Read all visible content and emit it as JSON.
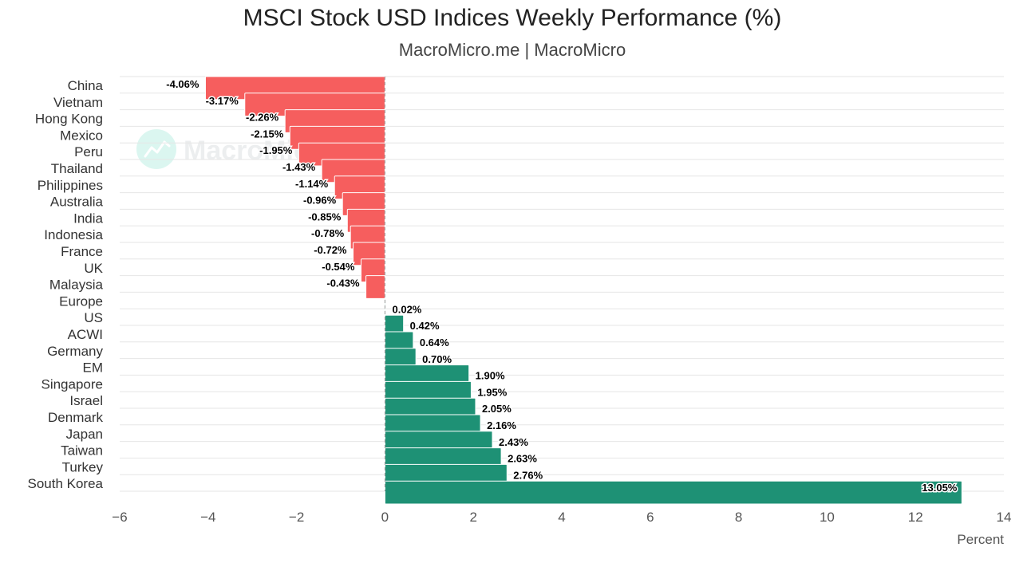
{
  "chart_data": {
    "type": "bar",
    "orientation": "horizontal",
    "title": "MSCI Stock USD Indices Weekly Performance (%)",
    "subtitle": "MacroMicro.me | MacroMicro",
    "xlabel": "Percent",
    "xlim": [
      -6,
      14
    ],
    "xticks": [
      -6,
      -4,
      -2,
      0,
      2,
      4,
      6,
      8,
      10,
      12,
      14
    ],
    "grid": true,
    "legend": "none",
    "watermark": "MacroMicro",
    "colors": {
      "negative": "#F65E5E",
      "positive": "#1E9175",
      "grid": "#E6E6E6",
      "zero_line": "#999999",
      "axis_text": "#555555",
      "category_text": "#333333"
    },
    "categories": [
      "China",
      "Vietnam",
      "Hong Kong",
      "Mexico",
      "Peru",
      "Thailand",
      "Philippines",
      "Australia",
      "India",
      "Indonesia",
      "France",
      "UK",
      "Malaysia",
      "Europe",
      "US",
      "ACWI",
      "Germany",
      "EM",
      "Singapore",
      "Israel",
      "Denmark",
      "Japan",
      "Taiwan",
      "Turkey",
      "South Korea"
    ],
    "values": [
      -4.06,
      -3.17,
      -2.26,
      -2.15,
      -1.95,
      -1.43,
      -1.14,
      -0.96,
      -0.85,
      -0.78,
      -0.72,
      -0.54,
      -0.43,
      0.02,
      0.42,
      0.64,
      0.7,
      1.9,
      1.95,
      2.05,
      2.16,
      2.43,
      2.63,
      2.76,
      13.05
    ],
    "value_labels": [
      "-4.06%",
      "-3.17%",
      "-2.26%",
      "-2.15%",
      "-1.95%",
      "-1.43%",
      "-1.14%",
      "-0.96%",
      "-0.85%",
      "-0.78%",
      "-0.72%",
      "-0.54%",
      "-0.43%",
      "0.02%",
      "0.42%",
      "0.64%",
      "0.70%",
      "1.90%",
      "1.95%",
      "2.05%",
      "2.16%",
      "2.43%",
      "2.63%",
      "2.76%",
      "13.05%"
    ]
  }
}
